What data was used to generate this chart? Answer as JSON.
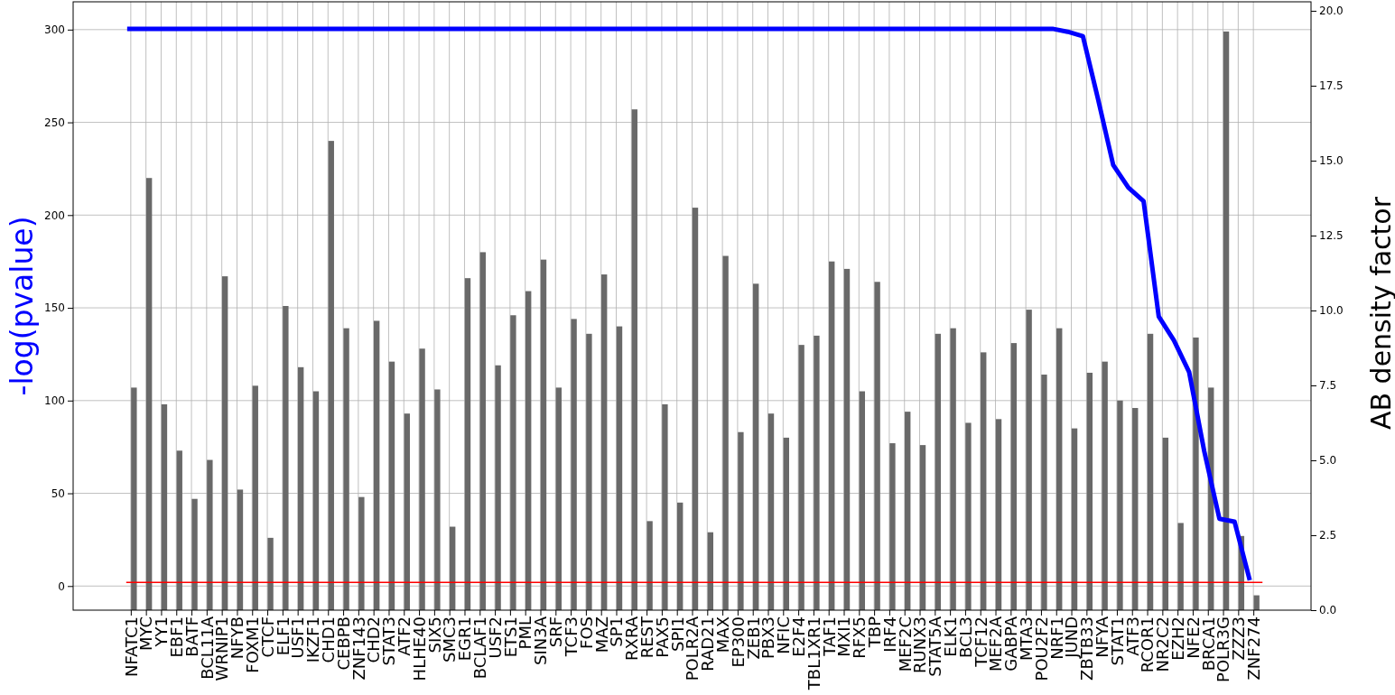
{
  "chart_data": {
    "type": "bar",
    "ylabel": "-log(pvalue)",
    "y2label": "AB density factor",
    "categories": [
      "NFATC1",
      "MYC",
      "YY1",
      "EBF1",
      "BATF",
      "BCL11A",
      "WRNIP1",
      "NFYB",
      "FOXM1",
      "CTCF",
      "ELF1",
      "USF1",
      "IKZF1",
      "CHD1",
      "CEBPB",
      "ZNF143",
      "CHD2",
      "STAT3",
      "ATF2",
      "HLHE40",
      "SIX5",
      "SMC3",
      "EGR1",
      "BCLAF1",
      "USF2",
      "ETS1",
      "PML",
      "SIN3A",
      "SRF",
      "TCF3",
      "FOS",
      "MAZ",
      "SP1",
      "RXRA",
      "REST",
      "PAX5",
      "SPI1",
      "POLR2A",
      "RAD21",
      "MAX",
      "EP300",
      "ZEB1",
      "PBX3",
      "NFIC",
      "E2F4",
      "TBL1XR1",
      "TAF1",
      "MXI1",
      "RFX5",
      "TBP",
      "IRF4",
      "MEF2C",
      "RUNX3",
      "STAT5A",
      "ELK1",
      "BCL3",
      "TCF12",
      "MEF2A",
      "GABPA",
      "MTA3",
      "POU2F2",
      "NRF1",
      "JUND",
      "ZBTB33",
      "NFYA",
      "STAT1",
      "ATF3",
      "RCOR1",
      "NR2C2",
      "EZH2",
      "NFE2",
      "BRCA1",
      "POLR3G",
      "ZZZ3",
      "ZNF274"
    ],
    "series": [
      {
        "color": "#696969",
        "base": [
          -13,
          -13,
          -13,
          -13,
          -13,
          -13,
          -13,
          -13,
          -13,
          -13,
          -13,
          -13,
          -13,
          -13,
          -13,
          -13,
          -13,
          -13,
          -13,
          -13,
          -13,
          -13,
          -13,
          -13,
          -13,
          -13,
          -13,
          -13,
          -13,
          -13,
          -13,
          -13,
          -13,
          -13,
          -13,
          -13,
          -13,
          -13,
          -13,
          -13,
          -13,
          -13,
          -13,
          -13,
          -13,
          -13,
          -13,
          -13,
          -13,
          -13,
          -13,
          -13,
          -13,
          -13,
          -13,
          -13,
          -13,
          -13,
          -13,
          -13,
          -13,
          -13,
          -13,
          -13,
          -13,
          -13,
          -13,
          -13,
          -13,
          -13,
          -13,
          -13,
          -13,
          -13,
          -13
        ],
        "values": [
          120,
          233,
          111,
          86,
          60,
          81,
          180,
          65,
          121,
          39,
          164,
          131,
          118,
          253,
          152,
          61,
          156,
          134,
          106,
          141,
          119,
          45,
          179,
          193,
          132,
          159,
          172,
          189,
          120,
          157,
          149,
          181,
          153,
          270,
          48,
          111,
          58,
          217,
          42,
          191,
          96,
          176,
          106,
          93,
          143,
          148,
          188,
          184,
          118,
          177,
          90,
          107,
          89,
          149,
          152,
          101,
          139,
          103,
          144,
          162,
          127,
          152,
          98,
          128,
          134,
          113,
          109,
          149,
          93,
          47,
          147,
          120,
          312,
          40,
          8
        ]
      },
      {
        "type": "line",
        "axis": "y2",
        "color": "#0000ff",
        "values": [
          19.4,
          19.4,
          19.4,
          19.4,
          19.4,
          19.4,
          19.4,
          19.4,
          19.4,
          19.4,
          19.4,
          19.4,
          19.4,
          19.4,
          19.4,
          19.4,
          19.4,
          19.4,
          19.4,
          19.4,
          19.4,
          19.4,
          19.4,
          19.4,
          19.4,
          19.4,
          19.4,
          19.4,
          19.4,
          19.4,
          19.4,
          19.4,
          19.4,
          19.4,
          19.4,
          19.4,
          19.4,
          19.4,
          19.4,
          19.4,
          19.4,
          19.4,
          19.4,
          19.4,
          19.4,
          19.4,
          19.4,
          19.4,
          19.4,
          19.4,
          19.4,
          19.4,
          19.4,
          19.4,
          19.4,
          19.4,
          19.4,
          19.4,
          19.4,
          19.4,
          19.4,
          19.4,
          19.3,
          19.15,
          17.05,
          14.85,
          14.1,
          13.65,
          9.8,
          9.0,
          7.95,
          5.3,
          3.05,
          2.95,
          1.0
        ]
      }
    ],
    "ylim": [
      -13,
      315
    ],
    "yticks": [
      0,
      50,
      100,
      150,
      200,
      250,
      300
    ],
    "y2lim": [
      0,
      20.3
    ],
    "y2ticks": [
      {
        "value": 0,
        "label": "0.0"
      },
      {
        "value": 2.5,
        "label": "2.5"
      },
      {
        "value": 5,
        "label": "5.0"
      },
      {
        "value": 7.5,
        "label": "7.5"
      },
      {
        "value": 10,
        "label": "10.0"
      },
      {
        "value": 12.5,
        "label": "12.5"
      },
      {
        "value": 15,
        "label": "15.0"
      },
      {
        "value": 17.5,
        "label": "17.5"
      },
      {
        "value": 20,
        "label": "20.0"
      }
    ],
    "ref_lines": [
      {
        "axis": "y",
        "value": 2,
        "color": "#ff0000"
      }
    ],
    "grid": true
  }
}
